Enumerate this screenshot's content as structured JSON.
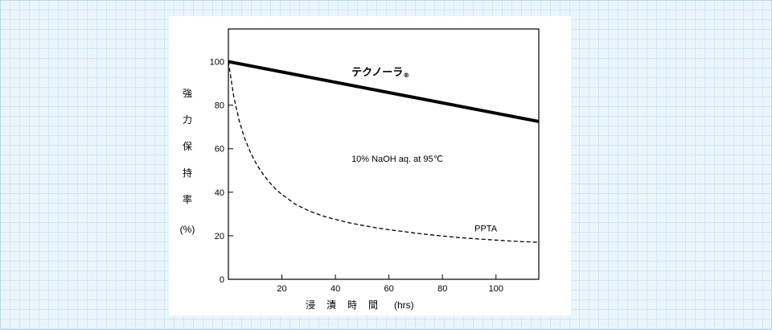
{
  "chart_data": {
    "type": "line",
    "xlabel": "浸漬時間",
    "xunit": "(hrs)",
    "ylabel": "強力保持率",
    "yunit": "(%)",
    "xlim": [
      0,
      116
    ],
    "ylim": [
      0,
      115
    ],
    "xticks": [
      20,
      40,
      60,
      80,
      100
    ],
    "yticks": [
      0,
      20,
      40,
      60,
      80,
      100
    ],
    "annotation": "10% NaOH aq. at 95℃",
    "series": [
      {
        "name": "テクノーラ",
        "mark": "®",
        "style": "solid",
        "x": [
          0,
          116
        ],
        "y": [
          100,
          72.5
        ]
      },
      {
        "name": "PPTA",
        "style": "dashed",
        "x": [
          0,
          2,
          4,
          6,
          8,
          10,
          12,
          15,
          18,
          20,
          25,
          30,
          35,
          40,
          45,
          50,
          55,
          60,
          65,
          70,
          75,
          80,
          85,
          90,
          95,
          100,
          105,
          110,
          116
        ],
        "y": [
          100,
          84,
          73,
          65,
          59,
          54,
          50,
          45,
          41,
          39,
          34.5,
          31.5,
          29.2,
          27.5,
          26,
          24.8,
          23.7,
          22.8,
          22,
          21.2,
          20.5,
          19.9,
          19.3,
          18.8,
          18.4,
          18,
          17.6,
          17.3,
          17
        ]
      }
    ],
    "grid": false
  }
}
